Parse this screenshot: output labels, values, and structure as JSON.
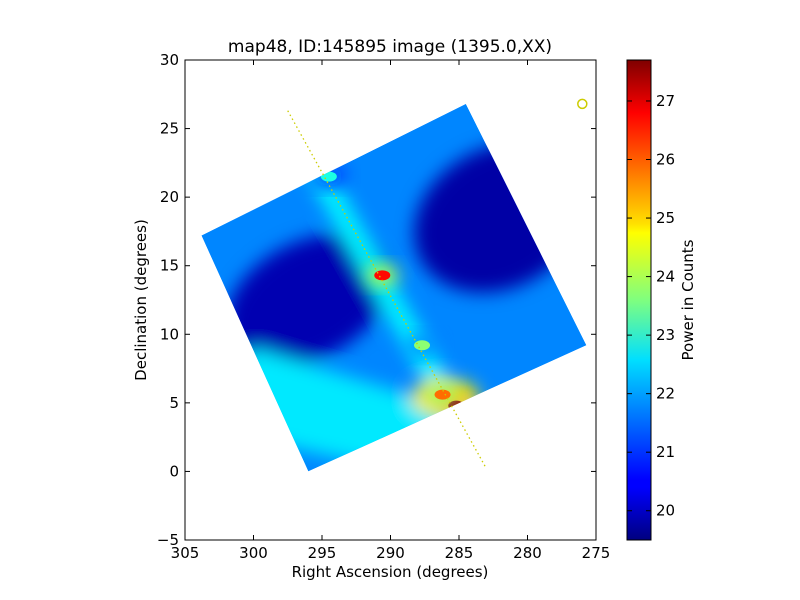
{
  "chart_data": {
    "type": "heatmap",
    "title": "map48, ID:145895 image (1395.0,XX)",
    "xlabel": "Right Ascension (degrees)",
    "ylabel": "Declination (degrees)",
    "xlim": [
      305,
      275
    ],
    "ylim": [
      -5,
      30
    ],
    "x_ticks": [
      305,
      300,
      295,
      290,
      285,
      280,
      275
    ],
    "x_tick_labels": [
      "305",
      "300",
      "295",
      "290",
      "285",
      "280",
      "275"
    ],
    "y_ticks": [
      -5,
      0,
      5,
      10,
      15,
      20,
      25,
      30
    ],
    "y_tick_labels": [
      "−5",
      "0",
      "5",
      "10",
      "15",
      "20",
      "25",
      "30"
    ],
    "colorbar": {
      "label": "Power in Counts",
      "range": [
        19.5,
        27.7
      ],
      "ticks": [
        20,
        21,
        22,
        23,
        24,
        25,
        26,
        27
      ],
      "tick_labels": [
        "20",
        "21",
        "22",
        "23",
        "24",
        "25",
        "26",
        "27"
      ],
      "colormap": "jet"
    },
    "map_corners_radec": [
      [
        303.8,
        17.2
      ],
      [
        284.5,
        26.8
      ],
      [
        275.7,
        9.2
      ],
      [
        296.0,
        0.0
      ]
    ],
    "galactic_plane_line": [
      [
        297.5,
        26.3
      ],
      [
        283.0,
        0.2
      ]
    ],
    "hotspots": [
      {
        "ra": 285.2,
        "dec": 4.8,
        "power": 27.5
      },
      {
        "ra": 286.2,
        "dec": 5.6,
        "power": 25.8
      },
      {
        "ra": 290.6,
        "dec": 14.3,
        "power": 26.6
      },
      {
        "ra": 287.7,
        "dec": 9.2,
        "power": 23.7
      },
      {
        "ra": 294.5,
        "dec": 21.5,
        "power": 22.8
      }
    ],
    "marker": {
      "ra": 276.0,
      "dec": 26.8,
      "color": "#cccc00"
    }
  }
}
